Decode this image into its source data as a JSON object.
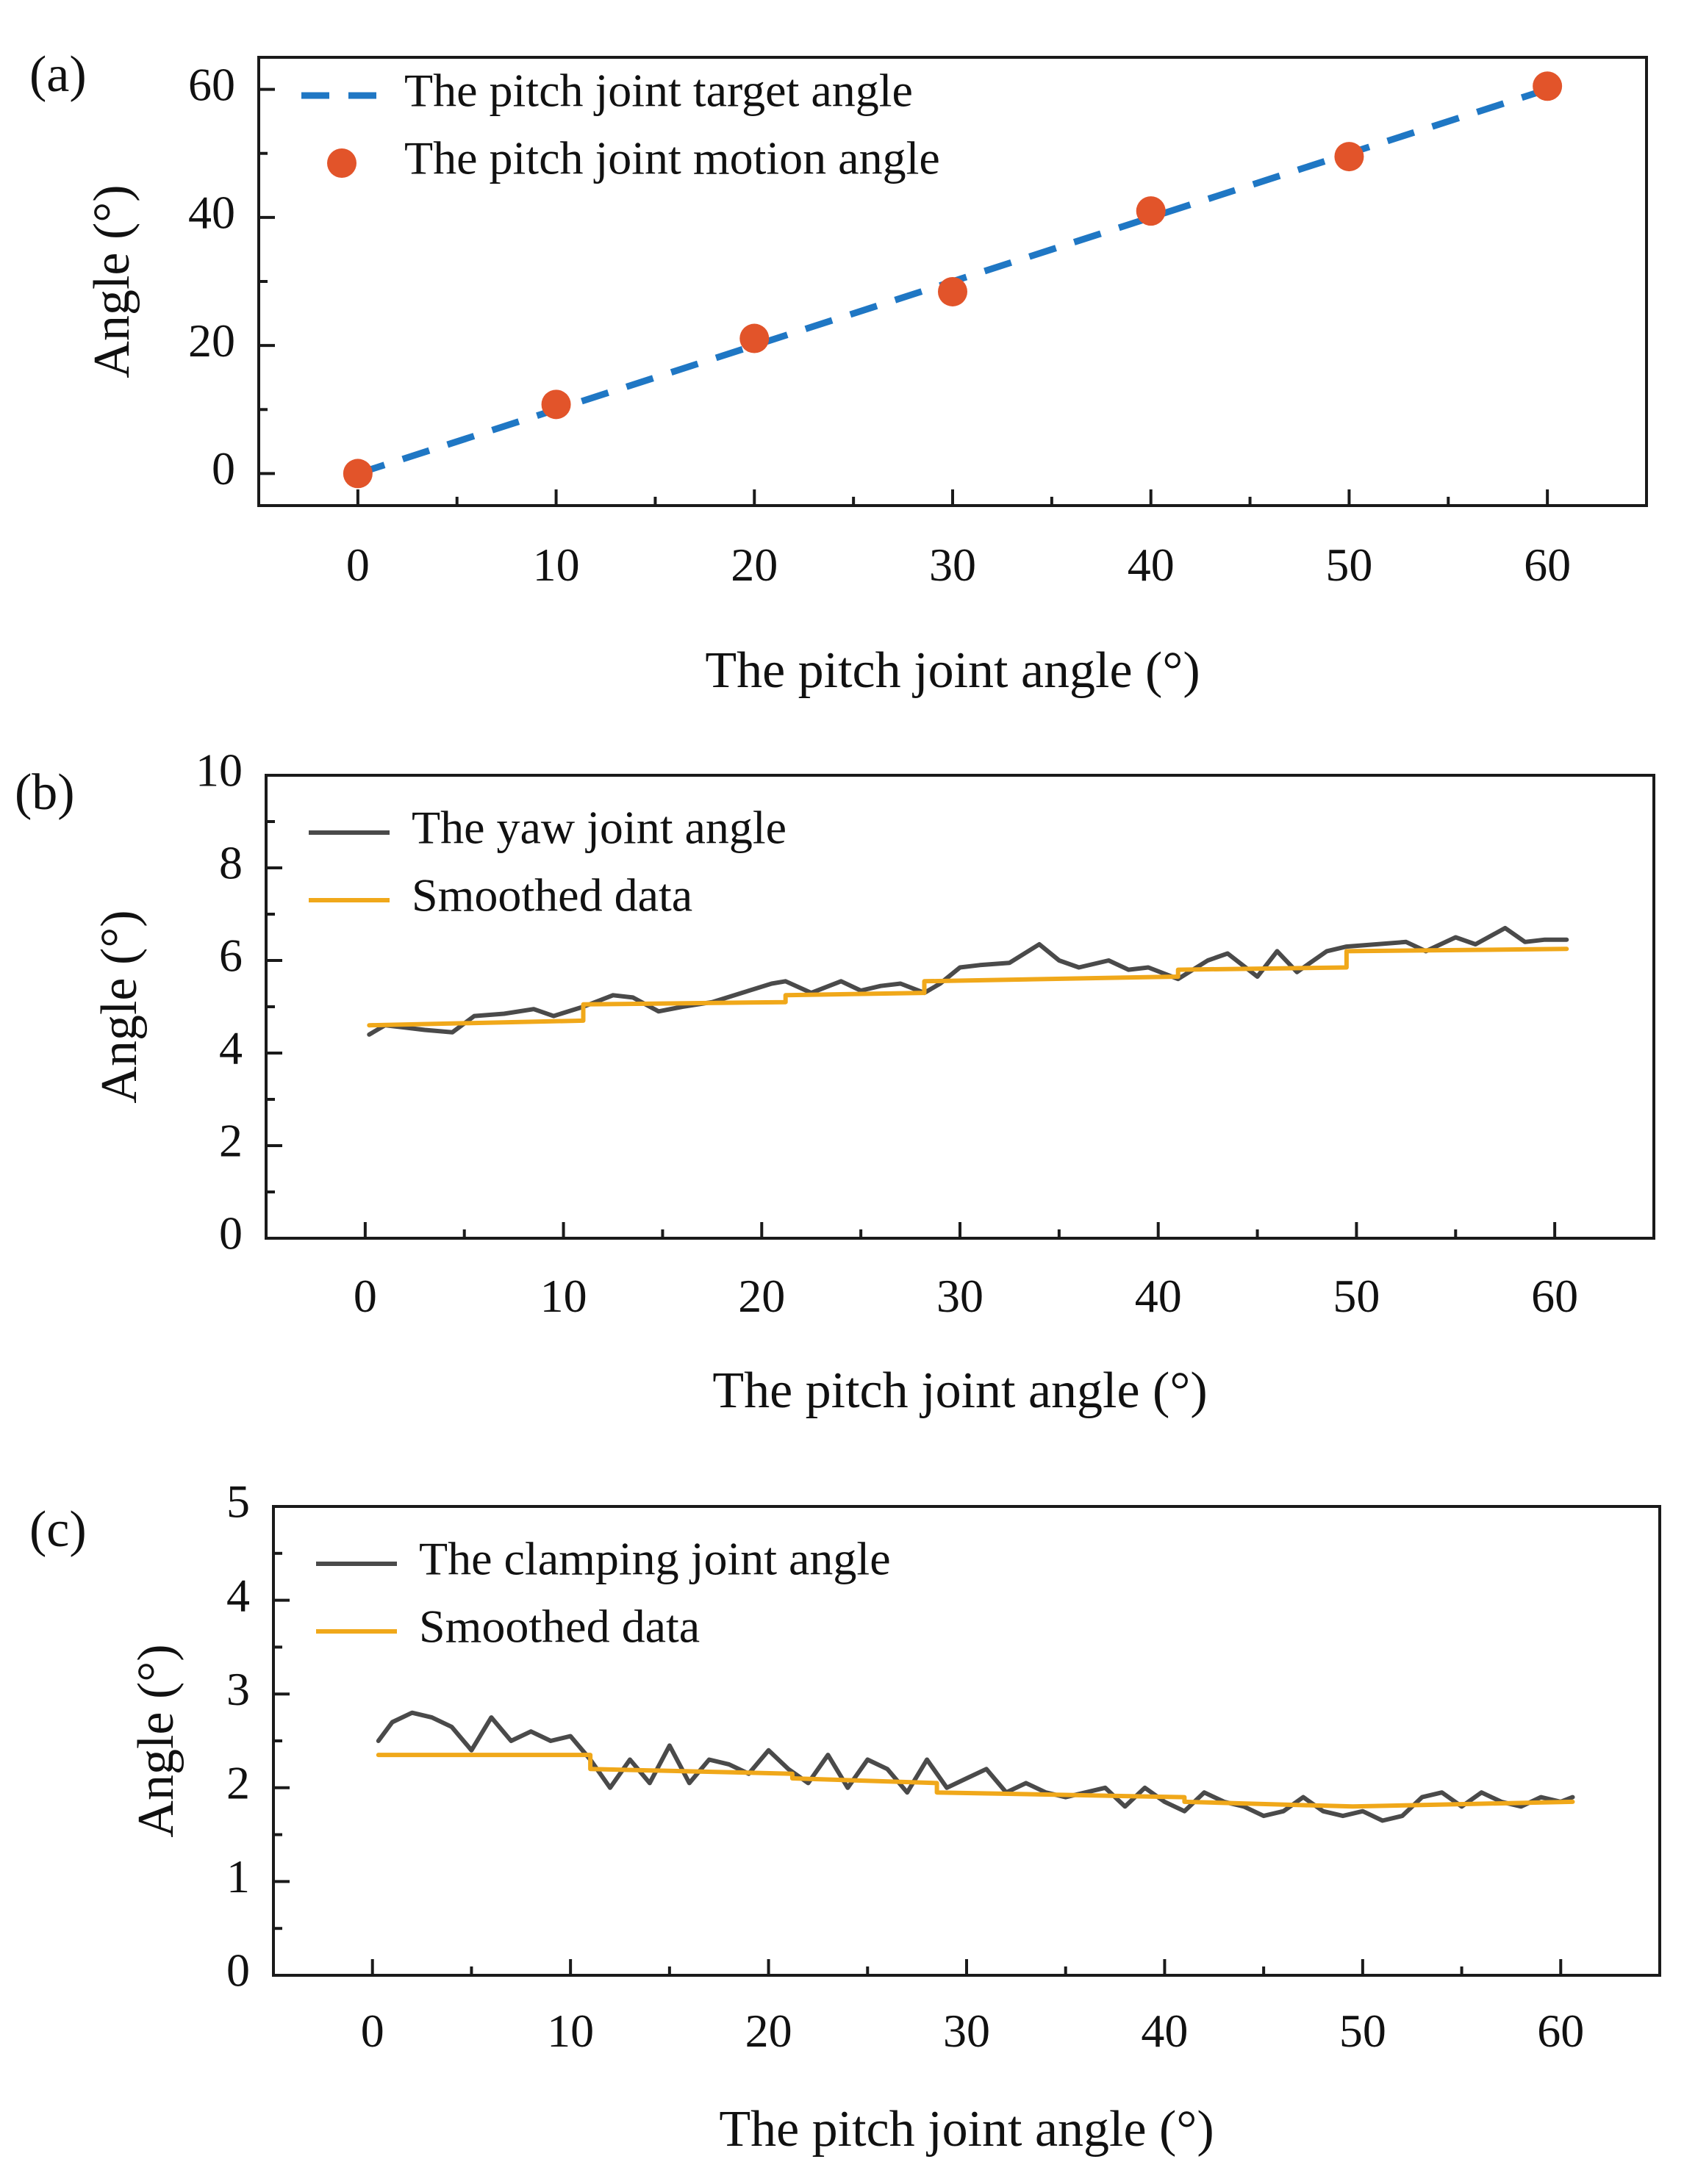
{
  "colors": {
    "axis": "#1a1a1a",
    "target_line": "#1f77c4",
    "motion_points": "#e2542a",
    "raw_line": "#4a4a4a",
    "smoothed_line": "#f0a81a"
  },
  "chart_data": [
    {
      "id": "a",
      "panel_label": "(a)",
      "type": "line",
      "xlabel": "The pitch joint angle (°)",
      "ylabel": "Angle (°)",
      "xlim": [
        -5,
        65
      ],
      "ylim": [
        -5,
        65
      ],
      "xticks": [
        0,
        10,
        20,
        30,
        40,
        50,
        60
      ],
      "xtick_labels": [
        "0",
        "10",
        "20",
        "30",
        "40",
        "50",
        "60"
      ],
      "yticks": [
        0,
        20,
        40,
        60
      ],
      "ytick_labels": [
        "0",
        "20",
        "40",
        "60"
      ],
      "legend_position": "top-left",
      "grid": false,
      "series": [
        {
          "name": "The pitch joint target angle",
          "style": "dashed",
          "color": "#1f77c4",
          "x": [
            0,
            60
          ],
          "y": [
            0,
            60
          ]
        },
        {
          "name": "The pitch joint motion angle",
          "style": "markers",
          "color": "#e2542a",
          "x": [
            0,
            10,
            20,
            30,
            40,
            50,
            60
          ],
          "y": [
            0,
            10.8,
            21.1,
            28.4,
            41.0,
            49.5,
            60.5
          ]
        }
      ]
    },
    {
      "id": "b",
      "panel_label": "(b)",
      "type": "line",
      "xlabel": "The pitch joint angle (°)",
      "ylabel": "Angle (°)",
      "xlim": [
        -5,
        65
      ],
      "ylim": [
        0,
        10
      ],
      "xticks": [
        0,
        10,
        20,
        30,
        40,
        50,
        60
      ],
      "xtick_labels": [
        "0",
        "10",
        "20",
        "30",
        "40",
        "50",
        "60"
      ],
      "yticks": [
        0,
        2,
        4,
        6,
        8,
        10
      ],
      "ytick_labels": [
        "0",
        "2",
        "4",
        "6",
        "8",
        "10"
      ],
      "legend_position": "top-left",
      "grid": false,
      "series": [
        {
          "name": "The yaw joint angle",
          "style": "line",
          "color": "#4a4a4a",
          "x": [
            0.2,
            1,
            2,
            3,
            4.4,
            5.5,
            7,
            8.5,
            9.5,
            11,
            12.5,
            13.5,
            14.8,
            16,
            17.5,
            19,
            20.5,
            21.2,
            22.5,
            24,
            25,
            26,
            27,
            28.2,
            29,
            30,
            31,
            32.5,
            34,
            35,
            36,
            37.5,
            38.5,
            39.5,
            41,
            42.5,
            43.5,
            45,
            46,
            47,
            48.5,
            49.5,
            51,
            52.5,
            53.5,
            55,
            56,
            57.5,
            58.5,
            59.5,
            60.6
          ],
          "y": [
            4.4,
            4.6,
            4.55,
            4.5,
            4.45,
            4.8,
            4.85,
            4.95,
            4.8,
            5.0,
            5.25,
            5.2,
            4.9,
            5.0,
            5.1,
            5.3,
            5.5,
            5.55,
            5.3,
            5.55,
            5.35,
            5.45,
            5.5,
            5.3,
            5.5,
            5.85,
            5.9,
            5.95,
            6.35,
            6.0,
            5.85,
            6.0,
            5.8,
            5.85,
            5.6,
            6.0,
            6.15,
            5.65,
            6.2,
            5.75,
            6.2,
            6.3,
            6.35,
            6.4,
            6.2,
            6.5,
            6.35,
            6.7,
            6.4,
            6.45,
            6.45
          ]
        },
        {
          "name": "Smoothed data",
          "style": "line",
          "color": "#f0a81a",
          "x": [
            0.2,
            11,
            11,
            21.2,
            21.2,
            28.2,
            28.2,
            41,
            41,
            49.5,
            49.5,
            60.6
          ],
          "y": [
            4.6,
            4.7,
            5.05,
            5.1,
            5.25,
            5.3,
            5.55,
            5.65,
            5.8,
            5.85,
            6.2,
            6.25
          ]
        }
      ]
    },
    {
      "id": "c",
      "panel_label": "(c)",
      "type": "line",
      "xlabel": "The pitch joint angle (°)",
      "ylabel": "Angle (°)",
      "xlim": [
        -5,
        65
      ],
      "ylim": [
        0,
        5
      ],
      "xticks": [
        0,
        10,
        20,
        30,
        40,
        50,
        60
      ],
      "xtick_labels": [
        "0",
        "10",
        "20",
        "30",
        "40",
        "50",
        "60"
      ],
      "yticks": [
        0,
        1,
        2,
        3,
        4,
        5
      ],
      "ytick_labels": [
        "0",
        "1",
        "2",
        "3",
        "4",
        "5"
      ],
      "legend_position": "top-left",
      "grid": false,
      "series": [
        {
          "name": "The clamping joint angle",
          "style": "line",
          "color": "#4a4a4a",
          "x": [
            0.3,
            1,
            2,
            3,
            4,
            5,
            6,
            7,
            8,
            9,
            10,
            11,
            12,
            13,
            14,
            15,
            16,
            17,
            18,
            19,
            20,
            21,
            22,
            23,
            24,
            25,
            26,
            27,
            28,
            29,
            30,
            31,
            32,
            33,
            34,
            35,
            36,
            37,
            38,
            39,
            40,
            41,
            42,
            43,
            44,
            45,
            46,
            47,
            48,
            49,
            50,
            51,
            52,
            53,
            54,
            55,
            56,
            57,
            58,
            59,
            60,
            60.6
          ],
          "y": [
            2.5,
            2.7,
            2.8,
            2.75,
            2.65,
            2.4,
            2.75,
            2.5,
            2.6,
            2.5,
            2.55,
            2.3,
            2.0,
            2.3,
            2.05,
            2.45,
            2.05,
            2.3,
            2.25,
            2.15,
            2.4,
            2.2,
            2.05,
            2.35,
            2.0,
            2.3,
            2.2,
            1.95,
            2.3,
            2.0,
            2.1,
            2.2,
            1.95,
            2.05,
            1.95,
            1.9,
            1.95,
            2.0,
            1.8,
            2.0,
            1.85,
            1.75,
            1.95,
            1.85,
            1.8,
            1.7,
            1.75,
            1.9,
            1.75,
            1.7,
            1.75,
            1.65,
            1.7,
            1.9,
            1.95,
            1.8,
            1.95,
            1.85,
            1.8,
            1.9,
            1.85,
            1.9
          ]
        },
        {
          "name": "Smoothed data",
          "style": "line",
          "color": "#f0a81a",
          "x": [
            0.3,
            11,
            11,
            21.2,
            21.2,
            28.5,
            28.5,
            41,
            41,
            49.5,
            49.5,
            60.6
          ],
          "y": [
            2.35,
            2.35,
            2.2,
            2.15,
            2.1,
            2.05,
            1.95,
            1.9,
            1.85,
            1.8,
            1.8,
            1.85
          ]
        }
      ]
    }
  ]
}
